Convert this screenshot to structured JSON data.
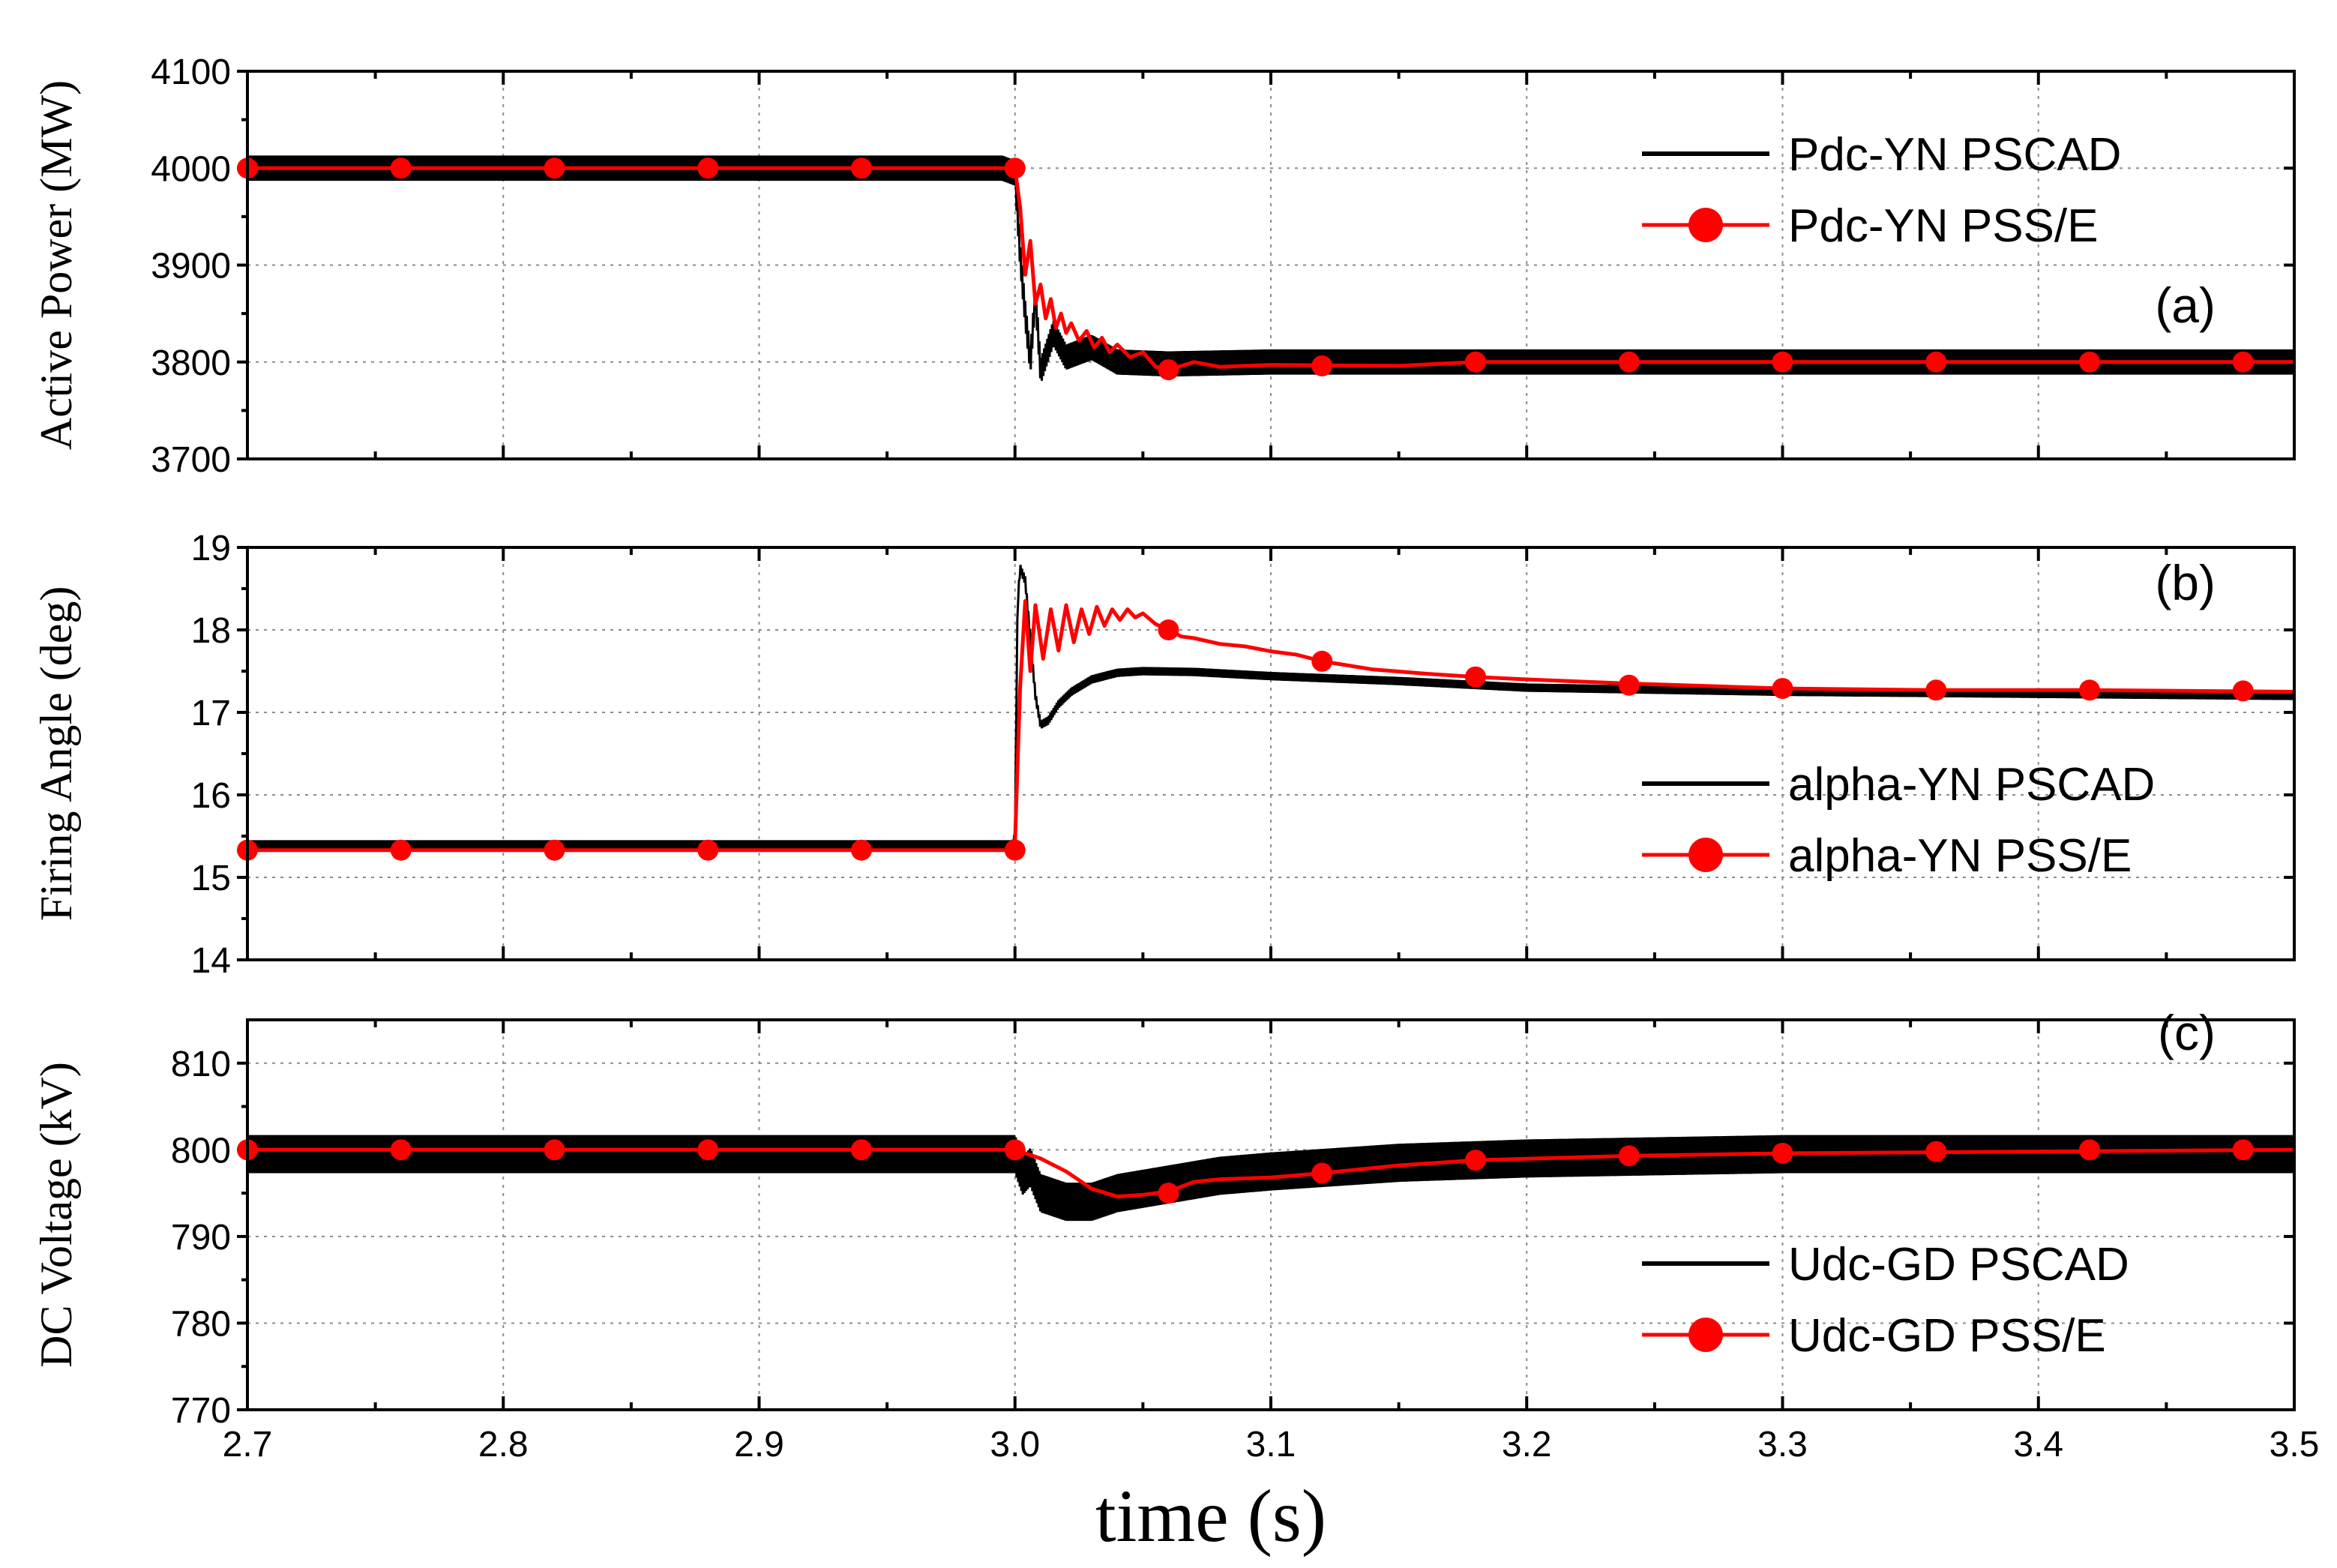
{
  "chart_data": [
    {
      "type": "line",
      "panel_label": "(a)",
      "ylabel": "Active Power (MW)",
      "xlim": [
        2.7,
        3.5
      ],
      "ylim": [
        3700,
        4100
      ],
      "yticks": [
        "3700",
        "3800",
        "3900",
        "4000",
        "4100"
      ],
      "series": [
        {
          "name": "Pdc-YN PSCAD",
          "color": "#000000",
          "ripple": 13,
          "x": [
            2.7,
            2.995,
            3.0,
            3.002,
            3.004,
            3.006,
            3.008,
            3.01,
            3.015,
            3.02,
            3.03,
            3.04,
            3.06,
            3.1,
            3.5
          ],
          "y": [
            4000,
            4000,
            3995,
            3910,
            3850,
            3800,
            3870,
            3790,
            3830,
            3805,
            3815,
            3800,
            3798,
            3800,
            3800
          ]
        },
        {
          "name": "Pdc-YN PSS/E",
          "color": "#ff0000",
          "x": [
            2.7,
            3.0,
            3.002,
            3.004,
            3.006,
            3.008,
            3.01,
            3.012,
            3.014,
            3.016,
            3.018,
            3.02,
            3.022,
            3.025,
            3.028,
            3.031,
            3.034,
            3.037,
            3.04,
            3.045,
            3.05,
            3.055,
            3.06,
            3.07,
            3.08,
            3.1,
            3.15,
            3.18,
            3.5
          ],
          "y": [
            4000,
            4000,
            3960,
            3890,
            3925,
            3860,
            3880,
            3845,
            3865,
            3835,
            3850,
            3830,
            3840,
            3822,
            3832,
            3815,
            3825,
            3810,
            3818,
            3805,
            3810,
            3795,
            3792,
            3800,
            3795,
            3797,
            3796,
            3800,
            3800
          ],
          "markers_x": [
            2.7,
            2.76,
            2.82,
            2.88,
            2.94,
            3.0,
            3.06,
            3.12,
            3.18,
            3.24,
            3.3,
            3.36,
            3.42,
            3.48
          ],
          "markers_y": [
            4000,
            4000,
            4000,
            4000,
            4000,
            4000,
            3792,
            3796,
            3800,
            3800,
            3800,
            3800,
            3800,
            3800
          ]
        }
      ]
    },
    {
      "type": "line",
      "panel_label": "(b)",
      "ylabel": "Firing Angle (deg)",
      "xlim": [
        2.7,
        3.5
      ],
      "ylim": [
        14,
        19
      ],
      "yticks": [
        "14",
        "15",
        "16",
        "17",
        "18",
        "19"
      ],
      "series": [
        {
          "name": "alpha-YN PSCAD",
          "color": "#000000",
          "ripple": 0.05,
          "x": [
            2.7,
            2.999,
            3.0,
            3.001,
            3.002,
            3.004,
            3.006,
            3.008,
            3.01,
            3.013,
            3.017,
            3.022,
            3.03,
            3.04,
            3.05,
            3.07,
            3.1,
            3.15,
            3.2,
            3.3,
            3.5
          ],
          "y": [
            15.4,
            15.4,
            15.5,
            18.3,
            18.75,
            18.6,
            17.9,
            17.2,
            16.85,
            16.9,
            17.1,
            17.25,
            17.4,
            17.48,
            17.5,
            17.49,
            17.44,
            17.38,
            17.3,
            17.25,
            17.2
          ]
        },
        {
          "name": "alpha-YN PSS/E",
          "color": "#ff0000",
          "x": [
            2.7,
            2.999,
            3.0,
            3.002,
            3.004,
            3.006,
            3.008,
            3.011,
            3.014,
            3.017,
            3.02,
            3.023,
            3.026,
            3.029,
            3.032,
            3.035,
            3.038,
            3.041,
            3.044,
            3.047,
            3.05,
            3.055,
            3.06,
            3.065,
            3.07,
            3.08,
            3.09,
            3.1,
            3.11,
            3.12,
            3.14,
            3.16,
            3.18,
            3.2,
            3.24,
            3.3,
            3.36,
            3.42,
            3.5
          ],
          "y": [
            15.33,
            15.33,
            15.4,
            17.3,
            18.35,
            17.5,
            18.3,
            17.65,
            18.25,
            17.75,
            18.3,
            17.85,
            18.25,
            17.95,
            18.28,
            18.05,
            18.25,
            18.12,
            18.25,
            18.15,
            18.2,
            18.07,
            18.0,
            17.92,
            17.9,
            17.83,
            17.8,
            17.74,
            17.7,
            17.62,
            17.52,
            17.47,
            17.43,
            17.4,
            17.35,
            17.29,
            17.27,
            17.27,
            17.25
          ],
          "markers_x": [
            2.7,
            2.76,
            2.82,
            2.88,
            2.94,
            3.0,
            3.06,
            3.12,
            3.18,
            3.24,
            3.3,
            3.36,
            3.42,
            3.48
          ],
          "markers_y": [
            15.33,
            15.33,
            15.33,
            15.33,
            15.33,
            15.33,
            18.0,
            17.62,
            17.43,
            17.33,
            17.29,
            17.27,
            17.27,
            17.26
          ]
        }
      ]
    },
    {
      "type": "line",
      "panel_label": "(c)",
      "ylabel": "DC Voltage (kV)",
      "xlabel": "time (s)",
      "xlim": [
        2.7,
        3.5
      ],
      "xticks": [
        "2.7",
        "2.8",
        "2.9",
        "3.0",
        "3.1",
        "3.2",
        "3.3",
        "3.4",
        "3.5"
      ],
      "ylim": [
        770,
        815
      ],
      "yticks": [
        "770",
        "780",
        "790",
        "800",
        "810"
      ],
      "series": [
        {
          "name": "Udc-GD PSCAD",
          "color": "#000000",
          "ripple": 2.2,
          "x": [
            2.7,
            3.0,
            3.003,
            3.006,
            3.01,
            3.02,
            3.03,
            3.04,
            3.05,
            3.06,
            3.08,
            3.1,
            3.15,
            3.2,
            3.3,
            3.5
          ],
          "y": [
            799.5,
            799.5,
            797,
            798,
            795,
            794,
            794,
            795,
            795.5,
            796,
            797,
            797.5,
            798.5,
            799,
            799.5,
            799.5
          ]
        },
        {
          "name": "Udc-GD PSS/E",
          "color": "#ff0000",
          "x": [
            2.7,
            3.0,
            3.01,
            3.02,
            3.03,
            3.04,
            3.05,
            3.06,
            3.07,
            3.08,
            3.1,
            3.12,
            3.15,
            3.18,
            3.24,
            3.3,
            3.5
          ],
          "y": [
            800,
            800,
            799,
            797.5,
            795.5,
            794.6,
            794.8,
            795.2,
            796.3,
            796.6,
            796.8,
            797.3,
            798.2,
            798.8,
            799.3,
            799.6,
            800
          ],
          "markers_x": [
            2.7,
            2.76,
            2.82,
            2.88,
            2.94,
            3.0,
            3.06,
            3.12,
            3.18,
            3.24,
            3.3,
            3.36,
            3.42,
            3.48
          ],
          "markers_y": [
            800,
            800,
            800,
            800,
            800,
            800,
            795,
            797.3,
            798.8,
            799.3,
            799.6,
            799.8,
            800,
            800
          ]
        }
      ]
    }
  ]
}
